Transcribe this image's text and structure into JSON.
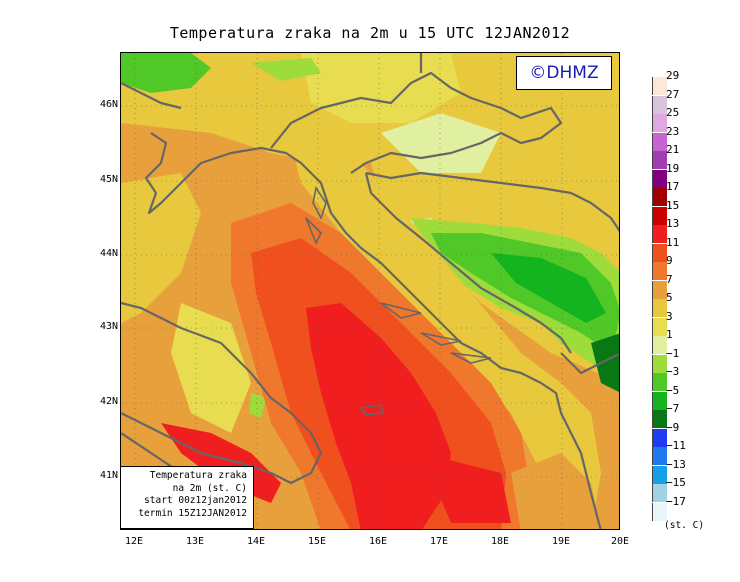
{
  "title": "Temperatura zraka na 2m u 15 UTC 12JAN2012",
  "copyright": "©DHMZ",
  "infobox": {
    "line1": "Temperatura zraka",
    "line2": "na 2m (st. C)",
    "line3": "start 00z12jan2012",
    "line4": "termin 15Z12JAN2012"
  },
  "lat_labels": [
    "46N",
    "45N",
    "44N",
    "43N",
    "42N",
    "41N"
  ],
  "lon_labels": [
    "12E",
    "13E",
    "14E",
    "15E",
    "16E",
    "17E",
    "18E",
    "19E",
    "20E"
  ],
  "legend": {
    "unit": "(st. C)",
    "levels": [
      "29",
      "27",
      "25",
      "23",
      "21",
      "19",
      "17",
      "15",
      "13",
      "11",
      "9",
      "7",
      "5",
      "3",
      "1",
      "−1",
      "−3",
      "−5",
      "−7",
      "−9",
      "−11",
      "−13",
      "−15",
      "−17"
    ],
    "colors": [
      "#fde8d8",
      "#d8c4dc",
      "#e0a8e0",
      "#c864d2",
      "#a03cb4",
      "#800080",
      "#a00000",
      "#c80000",
      "#f01e1e",
      "#f0501e",
      "#f0782d",
      "#e8a03c",
      "#e8c83c",
      "#e8dc50",
      "#e0f0a0",
      "#9edc3c",
      "#50c828",
      "#14b41e",
      "#087814",
      "#1e3cf0",
      "#1e78f0",
      "#14a0e6",
      "#a0d2e6",
      "#e6f6fa"
    ]
  }
}
